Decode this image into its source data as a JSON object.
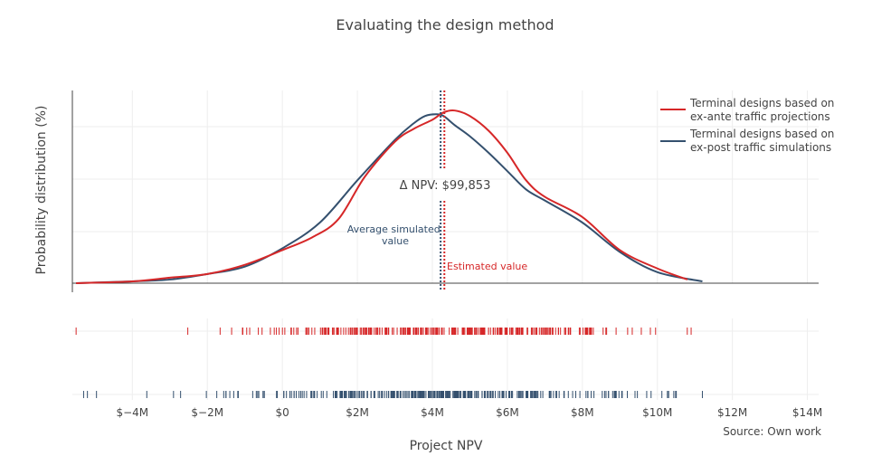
{
  "chart_data": {
    "type": "line",
    "title": "Evaluating the design method",
    "xlabel": "Project NPV",
    "ylabel": "Probability distribution (%)",
    "source": "Source: Own work",
    "x_ticks": [
      {
        "value": -4,
        "label": "$−4M"
      },
      {
        "value": -2,
        "label": "$−2M"
      },
      {
        "value": 0,
        "label": "$0"
      },
      {
        "value": 2,
        "label": "$2M"
      },
      {
        "value": 4,
        "label": "$4M"
      },
      {
        "value": 6,
        "label": "$6M"
      },
      {
        "value": 8,
        "label": "$8M"
      },
      {
        "value": 10,
        "label": "$10M"
      },
      {
        "value": 12,
        "label": "$12M"
      },
      {
        "value": 14,
        "label": "$14M"
      }
    ],
    "x_range": [
      -5.6,
      14.3
    ],
    "y_range": [
      0,
      1.0
    ],
    "series": [
      {
        "name": "Terminal designs based on ex-ante traffic projections",
        "legend_lines": [
          "Terminal designs based on",
          "ex-ante traffic projections"
        ],
        "color": "#d62728",
        "x": [
          -5.5,
          -4.0,
          -3.0,
          -2.0,
          -1.0,
          0.0,
          0.8,
          1.5,
          2.2,
          3.0,
          3.5,
          4.0,
          4.3,
          4.6,
          5.0,
          5.5,
          6.0,
          6.5,
          7.0,
          8.0,
          9.0,
          10.0,
          10.8
        ],
        "y": [
          0.0,
          0.01,
          0.03,
          0.05,
          0.1,
          0.18,
          0.25,
          0.35,
          0.58,
          0.77,
          0.84,
          0.89,
          0.93,
          0.94,
          0.91,
          0.83,
          0.71,
          0.56,
          0.47,
          0.36,
          0.18,
          0.08,
          0.02
        ]
      },
      {
        "name": "Terminal designs based on ex-post traffic simulations",
        "legend_lines": [
          "Terminal designs based on",
          "ex-post traffic simulations"
        ],
        "color": "#34506e",
        "x": [
          -5.5,
          -4.0,
          -3.0,
          -2.0,
          -1.0,
          0.0,
          1.0,
          2.0,
          3.0,
          3.5,
          3.8,
          4.1,
          4.3,
          4.6,
          5.0,
          5.5,
          6.0,
          6.5,
          7.0,
          8.0,
          9.0,
          10.0,
          11.2
        ],
        "y": [
          0.0,
          0.01,
          0.02,
          0.05,
          0.09,
          0.19,
          0.33,
          0.56,
          0.78,
          0.87,
          0.91,
          0.92,
          0.91,
          0.86,
          0.8,
          0.71,
          0.61,
          0.51,
          0.45,
          0.33,
          0.17,
          0.06,
          0.01
        ]
      }
    ],
    "annotations": {
      "delta_label": "Δ NPV: $99,853",
      "avg_label_lines": [
        "Average simulated",
        "value"
      ],
      "avg_value": 4.22,
      "avg_color": "#34506e",
      "est_label": "Estimated value",
      "est_value": 4.32,
      "est_color": "#d62728"
    },
    "rug": {
      "ex_ante_color": "#d62728",
      "ex_post_color": "#34506e",
      "ex_ante_range": [
        -5.5,
        10.9
      ],
      "ex_post_range": [
        -5.3,
        11.2
      ]
    },
    "grid": true,
    "legend_position": "top-right"
  }
}
